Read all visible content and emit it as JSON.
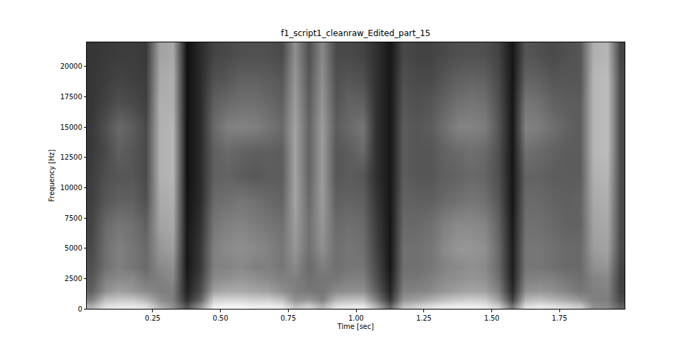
{
  "chart_data": {
    "type": "heatmap",
    "title": "f1_script1_cleanraw_Edited_part_15",
    "x_label": "Time [sec]",
    "y_label": "Frequency [Hz]",
    "xlim": [
      0.007,
      1.99
    ],
    "ylim": [
      0,
      22000
    ],
    "xticks": [
      0.25,
      {
        "value": 0.5,
        "label": "0.50"
      },
      0.75,
      {
        "value": 1.0,
        "label": "1.00"
      },
      1.25,
      {
        "value": 1.5,
        "label": "1.50"
      },
      1.75
    ],
    "yticks": [
      0,
      2500,
      5000,
      7500,
      10000,
      12500,
      15000,
      17500,
      20000
    ],
    "x": [
      0.025,
      0.075,
      0.125,
      0.175,
      0.225,
      0.275,
      0.325,
      0.375,
      0.425,
      0.475,
      0.525,
      0.575,
      0.625,
      0.675,
      0.725,
      0.775,
      0.825,
      0.875,
      0.925,
      0.975,
      1.025,
      1.075,
      1.125,
      1.175,
      1.225,
      1.275,
      1.325,
      1.375,
      1.425,
      1.475,
      1.525,
      1.575,
      1.625,
      1.675,
      1.725,
      1.775,
      1.825,
      1.875,
      1.925,
      1.975
    ],
    "y": [
      250,
      750,
      1500,
      2500,
      3500,
      5000,
      7000,
      9000,
      11000,
      13000,
      15000,
      17000,
      19000,
      21000
    ],
    "zlim": [
      15,
      95
    ],
    "cells": [
      [
        70,
        55,
        45,
        42,
        40,
        38,
        36,
        35,
        34,
        33,
        33,
        32,
        32,
        32
      ],
      [
        85,
        75,
        60,
        55,
        50,
        50,
        48,
        42,
        40,
        38,
        40,
        36,
        34,
        33
      ],
      [
        88,
        78,
        65,
        58,
        55,
        55,
        52,
        45,
        42,
        45,
        48,
        40,
        36,
        34
      ],
      [
        88,
        78,
        62,
        58,
        52,
        52,
        50,
        45,
        42,
        42,
        44,
        38,
        35,
        34
      ],
      [
        85,
        72,
        58,
        52,
        48,
        48,
        45,
        40,
        38,
        38,
        38,
        35,
        34,
        33
      ],
      [
        70,
        60,
        55,
        55,
        58,
        62,
        66,
        68,
        70,
        70,
        70,
        70,
        68,
        66
      ],
      [
        60,
        55,
        55,
        58,
        60,
        65,
        68,
        70,
        72,
        72,
        72,
        70,
        70,
        68
      ],
      [
        40,
        30,
        25,
        24,
        22,
        22,
        22,
        21,
        20,
        20,
        20,
        20,
        20,
        20
      ],
      [
        60,
        45,
        38,
        35,
        32,
        32,
        30,
        28,
        28,
        28,
        28,
        28,
        28,
        28
      ],
      [
        90,
        80,
        65,
        58,
        55,
        55,
        52,
        48,
        45,
        45,
        48,
        45,
        40,
        36
      ],
      [
        92,
        82,
        68,
        60,
        56,
        58,
        55,
        50,
        46,
        48,
        55,
        48,
        42,
        38
      ],
      [
        92,
        82,
        68,
        62,
        58,
        60,
        56,
        52,
        44,
        46,
        56,
        50,
        45,
        40
      ],
      [
        90,
        80,
        66,
        60,
        55,
        58,
        54,
        50,
        42,
        45,
        55,
        50,
        45,
        40
      ],
      [
        90,
        80,
        65,
        58,
        55,
        56,
        52,
        48,
        44,
        45,
        52,
        48,
        44,
        40
      ],
      [
        88,
        75,
        60,
        55,
        52,
        52,
        50,
        46,
        44,
        44,
        48,
        45,
        42,
        38
      ],
      [
        75,
        60,
        55,
        55,
        58,
        62,
        64,
        66,
        66,
        66,
        66,
        64,
        62,
        60
      ],
      [
        80,
        62,
        52,
        50,
        48,
        50,
        50,
        48,
        46,
        46,
        46,
        44,
        42,
        40
      ],
      [
        70,
        55,
        52,
        52,
        55,
        60,
        62,
        64,
        64,
        64,
        64,
        62,
        60,
        58
      ],
      [
        85,
        72,
        58,
        52,
        50,
        50,
        48,
        45,
        42,
        42,
        44,
        42,
        40,
        38
      ],
      [
        88,
        75,
        60,
        55,
        52,
        52,
        50,
        46,
        44,
        44,
        48,
        46,
        42,
        38
      ],
      [
        88,
        75,
        60,
        55,
        52,
        50,
        48,
        45,
        42,
        48,
        52,
        45,
        40,
        36
      ],
      [
        70,
        55,
        45,
        40,
        38,
        36,
        34,
        32,
        30,
        30,
        30,
        30,
        30,
        30
      ],
      [
        45,
        32,
        26,
        24,
        22,
        22,
        22,
        22,
        22,
        22,
        22,
        22,
        22,
        22
      ],
      [
        75,
        62,
        55,
        52,
        50,
        50,
        48,
        46,
        44,
        44,
        44,
        42,
        40,
        38
      ],
      [
        80,
        65,
        56,
        52,
        50,
        50,
        48,
        45,
        42,
        42,
        42,
        40,
        38,
        36
      ],
      [
        85,
        70,
        58,
        55,
        52,
        52,
        50,
        45,
        42,
        42,
        44,
        42,
        38,
        36
      ],
      [
        88,
        75,
        62,
        58,
        56,
        58,
        55,
        48,
        45,
        46,
        50,
        46,
        42,
        38
      ],
      [
        90,
        78,
        65,
        60,
        58,
        62,
        58,
        50,
        46,
        48,
        56,
        50,
        45,
        40
      ],
      [
        90,
        80,
        66,
        62,
        60,
        62,
        58,
        52,
        48,
        50,
        56,
        52,
        46,
        40
      ],
      [
        88,
        78,
        65,
        60,
        58,
        60,
        56,
        50,
        46,
        48,
        54,
        50,
        45,
        40
      ],
      [
        80,
        65,
        55,
        50,
        48,
        48,
        46,
        42,
        40,
        40,
        42,
        40,
        38,
        36
      ],
      [
        50,
        35,
        28,
        25,
        24,
        24,
        23,
        22,
        22,
        22,
        22,
        22,
        22,
        22
      ],
      [
        85,
        72,
        60,
        55,
        52,
        52,
        50,
        48,
        46,
        50,
        56,
        52,
        46,
        42
      ],
      [
        88,
        75,
        62,
        56,
        52,
        52,
        50,
        48,
        46,
        48,
        54,
        50,
        45,
        40
      ],
      [
        86,
        72,
        60,
        55,
        50,
        50,
        48,
        46,
        44,
        46,
        50,
        46,
        42,
        38
      ],
      [
        82,
        68,
        56,
        52,
        48,
        48,
        46,
        45,
        44,
        44,
        46,
        44,
        42,
        40
      ],
      [
        78,
        62,
        52,
        50,
        48,
        48,
        46,
        46,
        44,
        44,
        44,
        44,
        42,
        42
      ],
      [
        60,
        55,
        55,
        56,
        60,
        64,
        66,
        68,
        70,
        72,
        72,
        72,
        72,
        70
      ],
      [
        58,
        55,
        56,
        58,
        62,
        66,
        68,
        70,
        72,
        74,
        74,
        74,
        74,
        72
      ],
      [
        45,
        38,
        35,
        35,
        36,
        38,
        38,
        38,
        38,
        38,
        38,
        38,
        38,
        36
      ]
    ]
  }
}
